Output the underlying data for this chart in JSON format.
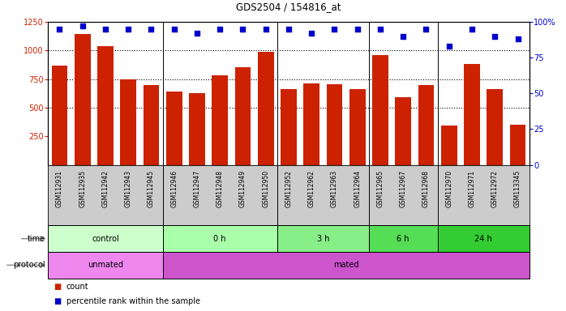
{
  "title": "GDS2504 / 154816_at",
  "samples": [
    "GSM112931",
    "GSM112935",
    "GSM112942",
    "GSM112943",
    "GSM112945",
    "GSM112946",
    "GSM112947",
    "GSM112948",
    "GSM112949",
    "GSM112950",
    "GSM112952",
    "GSM112962",
    "GSM112963",
    "GSM112964",
    "GSM112965",
    "GSM112967",
    "GSM112968",
    "GSM112970",
    "GSM112971",
    "GSM112972",
    "GSM113345"
  ],
  "counts": [
    870,
    1145,
    1040,
    750,
    695,
    640,
    625,
    780,
    855,
    990,
    665,
    710,
    705,
    665,
    960,
    590,
    700,
    345,
    880,
    665,
    350
  ],
  "percentile_ranks": [
    95,
    97,
    95,
    95,
    95,
    95,
    92,
    95,
    95,
    95,
    95,
    92,
    95,
    95,
    95,
    90,
    95,
    83,
    95,
    90,
    88
  ],
  "ylim_left": [
    0,
    1250
  ],
  "ylim_right": [
    0,
    100
  ],
  "yticks_left": [
    250,
    500,
    750,
    1000,
    1250
  ],
  "yticks_right": [
    0,
    25,
    50,
    75,
    100
  ],
  "bar_color": "#cc2200",
  "dot_color": "#0000cc",
  "bg_color": "#ffffff",
  "plot_bg": "#ffffff",
  "names_bg": "#cccccc",
  "time_groups": [
    {
      "label": "control",
      "start": 0,
      "end": 5,
      "color": "#ccffcc"
    },
    {
      "label": "0 h",
      "start": 5,
      "end": 10,
      "color": "#aaffaa"
    },
    {
      "label": "3 h",
      "start": 10,
      "end": 14,
      "color": "#88ee88"
    },
    {
      "label": "6 h",
      "start": 14,
      "end": 17,
      "color": "#55dd55"
    },
    {
      "label": "24 h",
      "start": 17,
      "end": 21,
      "color": "#33cc33"
    }
  ],
  "protocol_groups": [
    {
      "label": "unmated",
      "start": 0,
      "end": 5,
      "color": "#ee88ee"
    },
    {
      "label": "mated",
      "start": 5,
      "end": 21,
      "color": "#cc55cc"
    }
  ],
  "group_boundaries": [
    5,
    10,
    14,
    17
  ],
  "dotted_lines": [
    500,
    750,
    1000
  ],
  "legend_items": [
    {
      "color": "#cc2200",
      "label": "count"
    },
    {
      "color": "#0000cc",
      "label": "percentile rank within the sample"
    }
  ]
}
